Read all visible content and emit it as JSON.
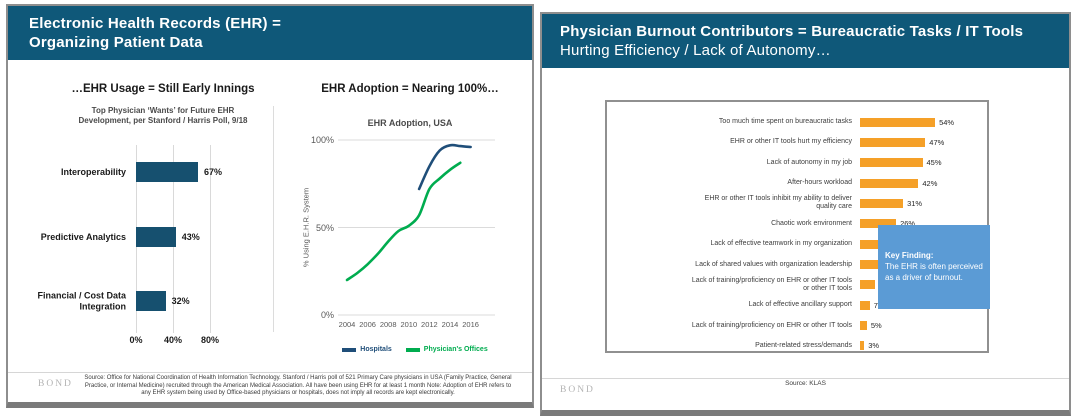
{
  "brand": {
    "logo_text": "BOND"
  },
  "left_slide": {
    "title_line1": "Electronic Health Records (EHR) =",
    "title_line2": "Organizing Patient Data",
    "source_text": "Source: Office for National Coordination of Health Information Technology.  Stanford / Harris poll of 521 Primary Care physicians in USA (Family Practice, General Practice, or Internal Medicine) recruited through the American Medical Association.  All have been using EHR for at least 1 month Note: Adoption of EHR refers to any EHR system being used by Office-based physicians or hospitals, does not imply all records are kept electronically."
  },
  "right_slide": {
    "title_line1": "Physician Burnout Contributors = Bureaucratic Tasks / IT Tools",
    "title_line2": "Hurting Efficiency / Lack of Autonomy…",
    "key_finding": {
      "heading": "Key Finding:",
      "body": "The EHR is often perceived as a driver of burnout."
    },
    "source_text": "Source: KLAS"
  },
  "chart_data": [
    {
      "id": "physician-wants",
      "type": "bar",
      "orientation": "horizontal",
      "title": "…EHR Usage = Still Early Innings",
      "subtitle": "Top Physician ‘Wants’ for Future EHR Development, per Stanford / Harris Poll, 9/18",
      "categories": [
        "Interoperability",
        "Predictive Analytics",
        "Financial / Cost Data Integration"
      ],
      "values": [
        67,
        43,
        32
      ],
      "value_suffix": "%",
      "xlim": [
        0,
        80
      ],
      "x_ticks": [
        {
          "value": 0,
          "label": "0%"
        },
        {
          "value": 40,
          "label": "40%"
        },
        {
          "value": 80,
          "label": "80%"
        }
      ],
      "bar_color": "#16506F",
      "grid": "vertical"
    },
    {
      "id": "ehr-adoption",
      "type": "line",
      "title": "EHR Adoption = Nearing 100%…",
      "subtitle": "EHR Adoption, USA",
      "ylabel": "% Using E.H.R. System",
      "ylim": [
        0,
        100
      ],
      "xlim": [
        2004,
        2016
      ],
      "y_ticks": [
        {
          "value": 0,
          "label": "0%"
        },
        {
          "value": 50,
          "label": "50%"
        },
        {
          "value": 100,
          "label": "100%"
        }
      ],
      "x_ticks": [
        2004,
        2006,
        2008,
        2010,
        2012,
        2014,
        2016
      ],
      "legend_position": "bottom",
      "series": [
        {
          "name": "Hospitals",
          "color": "#1F4E79",
          "points": [
            [
              2011,
              72
            ],
            [
              2012,
              85
            ],
            [
              2013,
              94
            ],
            [
              2014,
              97
            ],
            [
              2015,
              96.5
            ],
            [
              2016,
              96
            ]
          ]
        },
        {
          "name": "Physician's Offices",
          "color": "#00AC4F",
          "points": [
            [
              2004,
              20
            ],
            [
              2005,
              24
            ],
            [
              2006,
              29
            ],
            [
              2007,
              35
            ],
            [
              2008,
              42
            ],
            [
              2009,
              48
            ],
            [
              2010,
              51
            ],
            [
              2011,
              57
            ],
            [
              2012,
              72
            ],
            [
              2013,
              78
            ],
            [
              2014,
              83
            ],
            [
              2015,
              87
            ]
          ]
        }
      ]
    },
    {
      "id": "burnout-contributors",
      "type": "bar",
      "orientation": "horizontal",
      "title": "Physician Burnout Contributors",
      "categories": [
        "Too much time spent on bureaucratic tasks",
        "EHR or other IT tools hurt my efficiency",
        "Lack of autonomy in my job",
        "After-hours workload",
        "EHR or other IT tools inhibit my ability to deliver quality care",
        "Chaotic work environment",
        "Lack of effective teamwork in my organization",
        "Lack of shared values with organization leadership",
        "Lack of training/proficiency on EHR or other IT tools or other IT tools",
        "Lack of effective ancillary support",
        "Lack of training/proficiency on EHR or other IT tools",
        "Patient-related stress/demands"
      ],
      "values": [
        54,
        47,
        45,
        42,
        31,
        26,
        22,
        21,
        11,
        7,
        5,
        3
      ],
      "value_suffix": "%",
      "bar_color": "#F5A028",
      "annotation": "Key Finding: The EHR is often perceived as a driver of burnout."
    }
  ]
}
